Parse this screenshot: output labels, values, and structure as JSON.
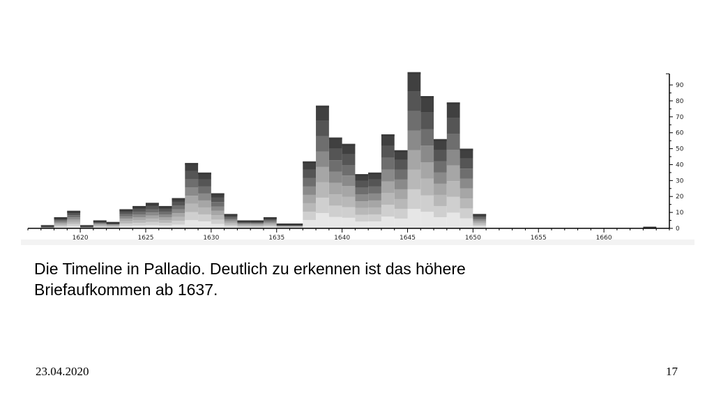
{
  "slide": {
    "caption_line1": "Die Timeline in Palladio. Deutlich zu erkennen ist das höhere",
    "caption_line2": "Briefaufkommen ab 1637.",
    "date": "23.04.2020",
    "page_number": "17"
  },
  "colors": {
    "background": "#ffffff",
    "axis": "#000000",
    "shades": [
      "#e6e6e6",
      "#cfcfcf",
      "#b8b8b8",
      "#a6a6a6",
      "#8a8a8a",
      "#6e6e6e",
      "#555555",
      "#404040"
    ]
  },
  "chart_data": {
    "type": "bar",
    "xlim": [
      1616,
      1665
    ],
    "ylim": [
      0,
      97
    ],
    "x_ticks": [
      1620,
      1625,
      1630,
      1635,
      1640,
      1645,
      1650,
      1655,
      1660
    ],
    "y_ticks": [
      0,
      10,
      20,
      30,
      40,
      50,
      60,
      70,
      80,
      90
    ],
    "bins": [
      {
        "year": 1617,
        "value": 2
      },
      {
        "year": 1618,
        "value": 7
      },
      {
        "year": 1619,
        "value": 11
      },
      {
        "year": 1620,
        "value": 2
      },
      {
        "year": 1621,
        "value": 5
      },
      {
        "year": 1622,
        "value": 4
      },
      {
        "year": 1623,
        "value": 12
      },
      {
        "year": 1624,
        "value": 14
      },
      {
        "year": 1625,
        "value": 16
      },
      {
        "year": 1626,
        "value": 14
      },
      {
        "year": 1627,
        "value": 19
      },
      {
        "year": 1628,
        "value": 41
      },
      {
        "year": 1629,
        "value": 35
      },
      {
        "year": 1630,
        "value": 22
      },
      {
        "year": 1631,
        "value": 9
      },
      {
        "year": 1632,
        "value": 5
      },
      {
        "year": 1633,
        "value": 5
      },
      {
        "year": 1634,
        "value": 7
      },
      {
        "year": 1635,
        "value": 3
      },
      {
        "year": 1636,
        "value": 3
      },
      {
        "year": 1637,
        "value": 42
      },
      {
        "year": 1638,
        "value": 77
      },
      {
        "year": 1639,
        "value": 57
      },
      {
        "year": 1640,
        "value": 53
      },
      {
        "year": 1641,
        "value": 34
      },
      {
        "year": 1642,
        "value": 35
      },
      {
        "year": 1643,
        "value": 59
      },
      {
        "year": 1644,
        "value": 49
      },
      {
        "year": 1645,
        "value": 98
      },
      {
        "year": 1646,
        "value": 83
      },
      {
        "year": 1647,
        "value": 56
      },
      {
        "year": 1648,
        "value": 79
      },
      {
        "year": 1649,
        "value": 50
      },
      {
        "year": 1650,
        "value": 9
      },
      {
        "year": 1663,
        "value": 1
      }
    ]
  }
}
